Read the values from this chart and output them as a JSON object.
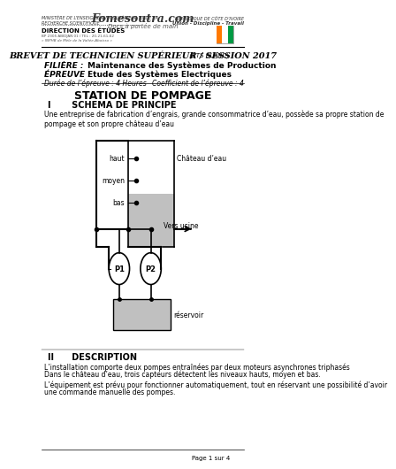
{
  "title_main": "BREVET DE TECHNICIEN SUPÉRIEUR / SESSION 2017",
  "title_main_suffix": " (BTS BLANC)",
  "filiere_label": "FILIÈRE :",
  "filiere_value": "Maintenance des Systèmes de Production",
  "epreuve_label": "ÉPREUVE :",
  "epreuve_value": "Etude des Systèmes Electriques",
  "duree": "Durée de l’épreuve : 4 Heures",
  "coeff": "Coefficient de l’épreuve : 4",
  "station_title": "STATION DE POMPAGE",
  "section_i": "I       SCHEMA DE PRINCIPE",
  "description_text": "Une entreprise de fabrication d’engrais, grande consommatrice d’eau, possède sa propre station de\npompage et son propre château d’eau",
  "chateau_label": "Château d’eau",
  "haut_label": "haut",
  "moyen_label": "moyen",
  "bas_label": "bas",
  "vers_usine": "Vers usine",
  "reservoir_label": "réservoir",
  "p1_label": "P1",
  "p2_label": "P2",
  "section_ii": "II      DESCRIPTION",
  "desc_text1": "L’installation comporte deux pompes entraînées par deux moteurs asynchrones triphasés",
  "desc_text2": "Dans le château d’eau, trois capteurs détectent les niveaux hauts, moyen et bas.",
  "desc_text3": "\nL’équipement est prévu pour fonctionner automatiquement, tout en réservant une possibilité d’avoir\nune commande manuelle des pompes.",
  "page_text": "Page 1 sur 4",
  "header_left1": "MINISTÈRE DE L’ENSEIGNEMENT SUPÉRIEUR ET DE LA",
  "header_left2": "RECHERCHE SCIENTIFIQUE",
  "header_left3": "DIRECTION DES ÉTUDES",
  "header_right1": "RÉPUBLIQUE DE CÔTE D’IVOIRE",
  "header_right2": "Union - Discipline - Travail",
  "fomesoutra": "Fomesoutra.com",
  "fomesoutra_sub": "Docs à portée de main",
  "bg_color": "#ffffff",
  "text_color": "#000000",
  "gray_fill": "#c0c0c0",
  "border_color": "#555555"
}
